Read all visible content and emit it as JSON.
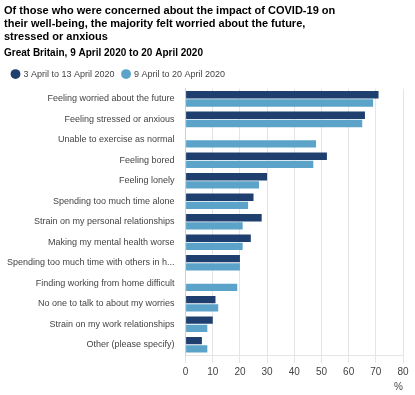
{
  "chart_data": {
    "type": "bar",
    "orientation": "horizontal",
    "title": "Of those who were concerned about the impact of COVID-19 on\ntheir well-being, the majority felt worried about the future,\nstressed or anxious",
    "subtitle": "Great Britain, 9 April 2020 to 20 April 2020",
    "categories": [
      "Feeling worried about the future",
      "Feeling stressed or anxious",
      "Unable to exercise as normal",
      "Feeling bored",
      "Feeling lonely",
      "Spending too much time alone",
      "Strain on my personal relationships",
      "Making my mental health worse",
      "Spending too much time with others in h...",
      "Finding working from home difficult",
      "No one to talk to about my worries",
      "Strain on my work relationships",
      "Other (please specify)"
    ],
    "series": [
      {
        "name": "3 April to 13 April 2020",
        "color": "#1f3f6e",
        "values": [
          71,
          66,
          null,
          52,
          30,
          25,
          28,
          24,
          20,
          null,
          11,
          10,
          6
        ]
      },
      {
        "name": "9 April to 20 April 2020",
        "color": "#5ba3c9",
        "values": [
          69,
          65,
          48,
          47,
          27,
          23,
          21,
          21,
          20,
          19,
          12,
          8,
          8
        ]
      }
    ],
    "xlabel": "%",
    "xlim": [
      0,
      80
    ],
    "xticks": [
      0,
      10,
      20,
      30,
      40,
      50,
      60,
      70,
      80
    ],
    "grid": true,
    "legend": "upper left"
  }
}
